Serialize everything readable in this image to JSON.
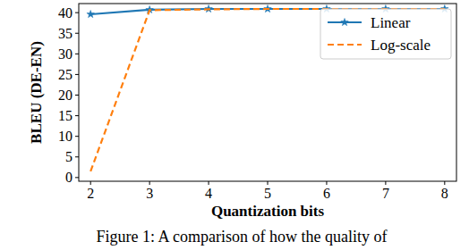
{
  "chart_data": {
    "type": "line",
    "x_label": "Quantization bits",
    "y_label": "BLEU (DE-EN)",
    "caption": "Figure 1: A comparison of how the quality of",
    "x": [
      2,
      3,
      4,
      5,
      6,
      7,
      8
    ],
    "series": [
      {
        "name": "Linear",
        "color": "#1f77b4",
        "line_style": "solid",
        "marker": "star",
        "values": [
          39.6,
          40.7,
          40.9,
          40.9,
          40.9,
          40.9,
          40.9
        ]
      },
      {
        "name": "Log-scale",
        "color": "#ff7f0e",
        "line_style": "dashed",
        "marker": "none",
        "values": [
          1.5,
          40.6,
          40.8,
          40.9,
          40.9,
          40.9,
          40.9
        ]
      }
    ],
    "xlim": [
      1.8,
      8.2
    ],
    "ylim": [
      -0.9,
      42.2
    ],
    "xticks": [
      2,
      3,
      4,
      5,
      6,
      7,
      8
    ],
    "yticks": [
      0,
      5,
      10,
      15,
      20,
      25,
      30,
      35,
      40
    ],
    "legend": "upper right",
    "grid": false
  }
}
